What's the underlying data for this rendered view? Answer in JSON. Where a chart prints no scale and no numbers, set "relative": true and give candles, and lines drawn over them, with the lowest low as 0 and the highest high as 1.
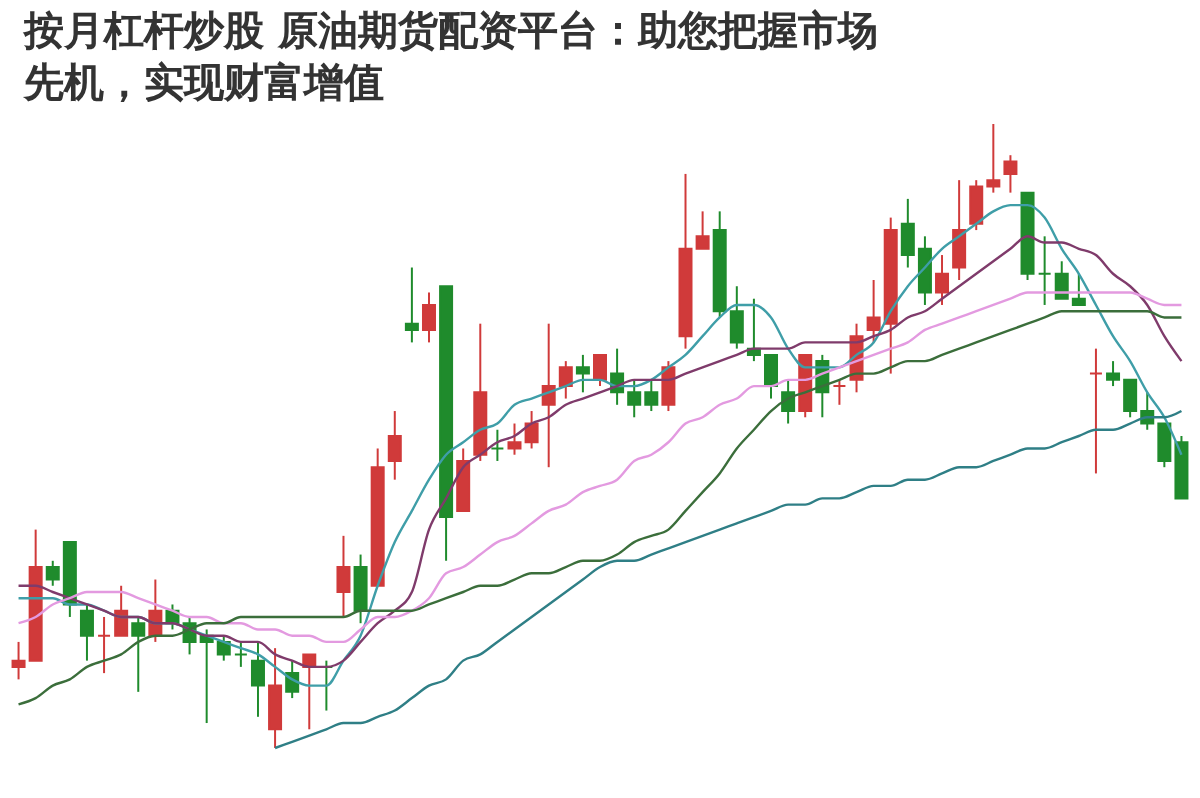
{
  "chart_data": {
    "type": "candlestick",
    "title": "按月杠杆炒股 原油期货配资平台：助您把握市场先机，实现财富增值",
    "relative": true,
    "categories": [
      null,
      null,
      null,
      null,
      null,
      null,
      null,
      null,
      null,
      null,
      null,
      null,
      null,
      null,
      null,
      null,
      null,
      null,
      null,
      null,
      null,
      null,
      null,
      null,
      null,
      null,
      null,
      null,
      null,
      null,
      null,
      null,
      null,
      null,
      null,
      null,
      null,
      null,
      null,
      null,
      null,
      null,
      null,
      null,
      null,
      null,
      null,
      null,
      null,
      null,
      null,
      null,
      null,
      null,
      null,
      null,
      null,
      null,
      null,
      null,
      null,
      null,
      null,
      null,
      null,
      null,
      null,
      null,
      null
    ],
    "ohlc": [
      [
        0.13,
        0.17,
        0.11,
        0.14
      ],
      [
        0.14,
        0.35,
        0.14,
        0.29
      ],
      [
        0.29,
        0.3,
        0.26,
        0.27
      ],
      [
        0.33,
        0.33,
        0.21,
        0.23
      ],
      [
        0.22,
        0.23,
        0.14,
        0.18
      ],
      [
        0.18,
        0.21,
        0.12,
        0.18
      ],
      [
        0.18,
        0.26,
        0.18,
        0.22
      ],
      [
        0.2,
        0.21,
        0.09,
        0.18
      ],
      [
        0.18,
        0.27,
        0.17,
        0.22
      ],
      [
        0.22,
        0.23,
        0.19,
        0.2
      ],
      [
        0.2,
        0.21,
        0.15,
        0.17
      ],
      [
        0.18,
        0.19,
        0.04,
        0.17
      ],
      [
        0.17,
        0.18,
        0.14,
        0.15
      ],
      [
        0.15,
        0.17,
        0.13,
        0.15
      ],
      [
        0.14,
        0.17,
        0.05,
        0.1
      ],
      [
        0.03,
        0.16,
        0.0,
        0.1
      ],
      [
        0.12,
        0.14,
        0.08,
        0.09
      ],
      [
        0.13,
        0.15,
        0.03,
        0.15
      ],
      [
        0.13,
        0.14,
        0.06,
        0.13
      ],
      [
        0.25,
        0.34,
        0.21,
        0.29
      ],
      [
        0.29,
        0.31,
        0.2,
        0.22
      ],
      [
        0.26,
        0.48,
        0.26,
        0.45
      ],
      [
        0.46,
        0.54,
        0.43,
        0.5
      ],
      [
        0.68,
        0.77,
        0.65,
        0.67
      ],
      [
        0.67,
        0.73,
        0.65,
        0.71
      ],
      [
        0.74,
        0.74,
        0.3,
        0.37
      ],
      [
        0.38,
        0.48,
        0.38,
        0.46
      ],
      [
        0.47,
        0.68,
        0.46,
        0.57
      ],
      [
        0.48,
        0.51,
        0.46,
        0.48
      ],
      [
        0.48,
        0.52,
        0.47,
        0.49
      ],
      [
        0.49,
        0.54,
        0.48,
        0.52
      ],
      [
        0.55,
        0.68,
        0.45,
        0.58
      ],
      [
        0.58,
        0.62,
        0.56,
        0.61
      ],
      [
        0.61,
        0.63,
        0.57,
        0.6
      ],
      [
        0.59,
        0.63,
        0.58,
        0.63
      ],
      [
        0.6,
        0.64,
        0.55,
        0.57
      ],
      [
        0.57,
        0.59,
        0.53,
        0.55
      ],
      [
        0.57,
        0.59,
        0.54,
        0.55
      ],
      [
        0.55,
        0.62,
        0.54,
        0.61
      ],
      [
        0.66,
        0.92,
        0.64,
        0.8
      ],
      [
        0.8,
        0.86,
        0.8,
        0.82
      ],
      [
        0.83,
        0.86,
        0.69,
        0.7
      ],
      [
        0.7,
        0.74,
        0.64,
        0.65
      ],
      [
        0.64,
        0.72,
        0.62,
        0.63
      ],
      [
        0.63,
        0.63,
        0.56,
        0.58
      ],
      [
        0.57,
        0.59,
        0.52,
        0.54
      ],
      [
        0.54,
        0.63,
        0.53,
        0.63
      ],
      [
        0.62,
        0.63,
        0.53,
        0.57
      ],
      [
        0.58,
        0.59,
        0.55,
        0.58
      ],
      [
        0.59,
        0.68,
        0.57,
        0.66
      ],
      [
        0.67,
        0.75,
        0.65,
        0.69
      ],
      [
        0.68,
        0.85,
        0.6,
        0.83
      ],
      [
        0.84,
        0.88,
        0.77,
        0.79
      ],
      [
        0.8,
        0.82,
        0.71,
        0.73
      ],
      [
        0.73,
        0.79,
        0.71,
        0.76
      ],
      [
        0.77,
        0.91,
        0.75,
        0.83
      ],
      [
        0.84,
        0.91,
        0.83,
        0.9
      ],
      [
        0.9,
        1.0,
        0.89,
        0.91
      ],
      [
        0.92,
        0.95,
        0.89,
        0.94
      ],
      [
        0.89,
        0.89,
        0.75,
        0.76
      ],
      [
        0.76,
        0.82,
        0.71,
        0.76
      ],
      [
        0.76,
        0.78,
        0.72,
        0.72
      ],
      [
        0.72,
        0.76,
        0.71,
        0.71
      ],
      [
        0.6,
        0.64,
        0.44,
        0.6
      ],
      [
        0.6,
        0.62,
        0.58,
        0.59
      ],
      [
        0.59,
        0.59,
        0.53,
        0.54
      ],
      [
        0.54,
        0.57,
        0.51,
        0.52
      ],
      [
        0.52,
        0.52,
        0.45,
        0.46
      ],
      [
        0.49,
        0.5,
        0.4,
        0.4
      ]
    ],
    "colors": [
      "#d03a3a",
      "#d03a3a",
      "#1f8b2c",
      "#1f8b2c",
      "#1f8b2c",
      "#d03a3a",
      "#d03a3a",
      "#1f8b2c",
      "#d03a3a",
      "#1f8b2c",
      "#1f8b2c",
      "#1f8b2c",
      "#1f8b2c",
      "#1f8b2c",
      "#1f8b2c",
      "#d03a3a",
      "#1f8b2c",
      "#d03a3a",
      "#1f8b2c",
      "#d03a3a",
      "#1f8b2c",
      "#d03a3a",
      "#d03a3a",
      "#1f8b2c",
      "#d03a3a",
      "#1f8b2c",
      "#d03a3a",
      "#d03a3a",
      "#1f8b2c",
      "#d03a3a",
      "#d03a3a",
      "#d03a3a",
      "#d03a3a",
      "#1f8b2c",
      "#d03a3a",
      "#1f8b2c",
      "#1f8b2c",
      "#1f8b2c",
      "#d03a3a",
      "#d03a3a",
      "#d03a3a",
      "#1f8b2c",
      "#1f8b2c",
      "#1f8b2c",
      "#1f8b2c",
      "#1f8b2c",
      "#d03a3a",
      "#1f8b2c",
      "#d03a3a",
      "#d03a3a",
      "#d03a3a",
      "#d03a3a",
      "#1f8b2c",
      "#1f8b2c",
      "#d03a3a",
      "#d03a3a",
      "#d03a3a",
      "#d03a3a",
      "#d03a3a",
      "#1f8b2c",
      "#1f8b2c",
      "#1f8b2c",
      "#1f8b2c",
      "#d03a3a",
      "#1f8b2c",
      "#1f8b2c",
      "#1f8b2c",
      "#1f8b2c",
      "#1f8b2c"
    ],
    "series": [
      {
        "type": "line",
        "color": "#3f9ea8",
        "values": [
          0.24,
          0.24,
          0.24,
          0.23,
          0.23,
          0.22,
          0.21,
          0.21,
          0.2,
          0.2,
          0.19,
          0.18,
          0.17,
          0.16,
          0.15,
          0.13,
          0.11,
          0.1,
          0.1,
          0.14,
          0.18,
          0.26,
          0.33,
          0.38,
          0.43,
          0.47,
          0.49,
          0.51,
          0.52,
          0.55,
          0.56,
          0.57,
          0.58,
          0.59,
          0.59,
          0.58,
          0.58,
          0.59,
          0.61,
          0.63,
          0.66,
          0.69,
          0.71,
          0.71,
          0.69,
          0.64,
          0.61,
          0.61,
          0.61,
          0.63,
          0.65,
          0.7,
          0.74,
          0.77,
          0.8,
          0.82,
          0.84,
          0.86,
          0.87,
          0.87,
          0.85,
          0.8,
          0.76,
          0.71,
          0.66,
          0.62,
          0.57,
          0.53,
          0.47
        ]
      },
      {
        "type": "line",
        "color": "#7f3b6b",
        "values": [
          0.26,
          0.26,
          0.25,
          0.24,
          0.23,
          0.22,
          0.21,
          0.21,
          0.2,
          0.2,
          0.19,
          0.18,
          0.18,
          0.17,
          0.17,
          0.15,
          0.14,
          0.13,
          0.13,
          0.14,
          0.17,
          0.2,
          0.22,
          0.25,
          0.35,
          0.4,
          0.45,
          0.47,
          0.49,
          0.5,
          0.52,
          0.53,
          0.55,
          0.56,
          0.57,
          0.58,
          0.59,
          0.59,
          0.59,
          0.6,
          0.61,
          0.62,
          0.63,
          0.64,
          0.64,
          0.64,
          0.65,
          0.65,
          0.65,
          0.65,
          0.66,
          0.67,
          0.69,
          0.7,
          0.72,
          0.74,
          0.76,
          0.78,
          0.8,
          0.82,
          0.81,
          0.81,
          0.8,
          0.79,
          0.76,
          0.74,
          0.71,
          0.66,
          0.62
        ]
      },
      {
        "type": "line",
        "color": "#e39ae0",
        "values": [
          0.2,
          0.21,
          0.23,
          0.24,
          0.25,
          0.25,
          0.25,
          0.24,
          0.23,
          0.22,
          0.21,
          0.21,
          0.2,
          0.2,
          0.19,
          0.19,
          0.18,
          0.18,
          0.17,
          0.17,
          0.19,
          0.21,
          0.21,
          0.22,
          0.24,
          0.28,
          0.29,
          0.31,
          0.33,
          0.34,
          0.36,
          0.38,
          0.39,
          0.41,
          0.42,
          0.43,
          0.46,
          0.47,
          0.49,
          0.52,
          0.53,
          0.55,
          0.56,
          0.58,
          0.58,
          0.59,
          0.59,
          0.6,
          0.61,
          0.62,
          0.63,
          0.64,
          0.65,
          0.67,
          0.68,
          0.69,
          0.7,
          0.71,
          0.72,
          0.73,
          0.73,
          0.73,
          0.73,
          0.73,
          0.73,
          0.73,
          0.72,
          0.71,
          0.71
        ]
      },
      {
        "type": "line",
        "color": "#3b6e3b",
        "values": [
          0.07,
          0.08,
          0.1,
          0.11,
          0.13,
          0.14,
          0.15,
          0.17,
          0.18,
          0.18,
          0.19,
          0.2,
          0.2,
          0.21,
          0.21,
          0.21,
          0.21,
          0.21,
          0.21,
          0.21,
          0.22,
          0.22,
          0.22,
          0.22,
          0.23,
          0.24,
          0.25,
          0.26,
          0.26,
          0.27,
          0.28,
          0.28,
          0.29,
          0.3,
          0.3,
          0.31,
          0.33,
          0.34,
          0.35,
          0.38,
          0.41,
          0.44,
          0.48,
          0.51,
          0.54,
          0.56,
          0.57,
          0.58,
          0.59,
          0.6,
          0.6,
          0.61,
          0.62,
          0.62,
          0.63,
          0.64,
          0.65,
          0.66,
          0.67,
          0.68,
          0.69,
          0.7,
          0.7,
          0.7,
          0.7,
          0.7,
          0.7,
          0.69,
          0.69
        ]
      },
      {
        "type": "line",
        "color": "#2f7f86",
        "values": [
          null,
          null,
          null,
          null,
          null,
          null,
          null,
          null,
          null,
          null,
          null,
          null,
          null,
          null,
          null,
          0.0,
          0.01,
          0.02,
          0.03,
          0.04,
          0.04,
          0.05,
          0.06,
          0.08,
          0.1,
          0.11,
          0.14,
          0.15,
          0.17,
          0.19,
          0.21,
          0.23,
          0.25,
          0.27,
          0.29,
          0.3,
          0.3,
          0.31,
          0.32,
          0.33,
          0.34,
          0.35,
          0.36,
          0.37,
          0.38,
          0.39,
          0.39,
          0.4,
          0.4,
          0.41,
          0.42,
          0.42,
          0.43,
          0.43,
          0.44,
          0.45,
          0.45,
          0.46,
          0.47,
          0.48,
          0.48,
          0.49,
          0.5,
          0.51,
          0.51,
          0.52,
          0.53,
          0.53,
          0.54
        ]
      }
    ]
  }
}
